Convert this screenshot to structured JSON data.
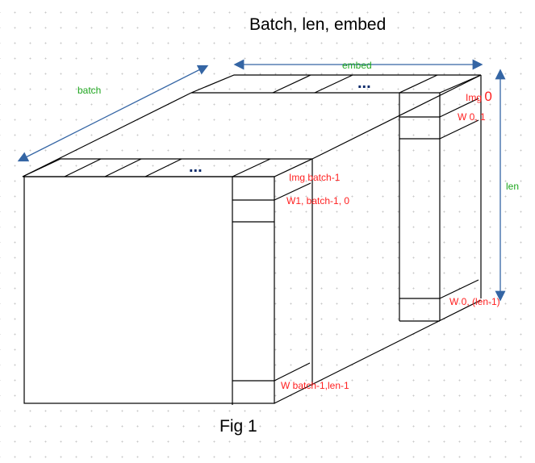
{
  "title": "Batch, len, embed",
  "caption": "Fig 1",
  "axes": {
    "batch": "batch",
    "embed": "embed",
    "len": "len"
  },
  "ellipsis": "...",
  "labels": {
    "img0_prefix": "Img ",
    "img0_index": "0",
    "w01": "W 0, 1",
    "w0_last": "W 0, (len-1)",
    "img_last": "Img batch-1",
    "w1_last_0": "W1, batch-1, 0",
    "w_last_last": "W batch-1,len-1"
  },
  "colors": {
    "arrow": "#3465a4",
    "axis_label": "#1fa61f",
    "cell_label": "#ff1f1f",
    "ellipsis": "#0a2a6a"
  }
}
